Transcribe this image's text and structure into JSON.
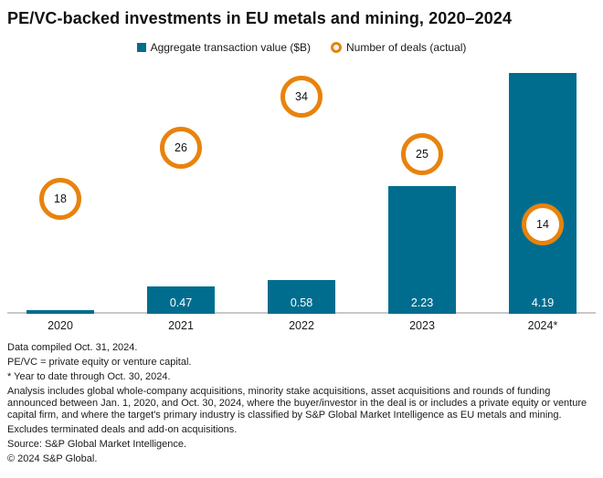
{
  "title": "PE/VC-backed investments in EU metals and mining, 2020–2024",
  "legend": [
    {
      "label": "Aggregate transaction value ($B)",
      "swatch": "square",
      "color": "#006d8f"
    },
    {
      "label": "Number of deals (actual)",
      "swatch": "ring",
      "color": "#e8830d"
    }
  ],
  "chart_data": {
    "type": "bar",
    "categories": [
      "2020",
      "2021",
      "2022",
      "2023",
      "2024*"
    ],
    "series": [
      {
        "name": "Aggregate transaction value ($B)",
        "type": "bar",
        "color": "#006d8f",
        "values": [
          0.06,
          0.47,
          0.58,
          2.23,
          4.19
        ],
        "labels": [
          "",
          "0.47",
          "0.58",
          "2.23",
          "4.19"
        ]
      },
      {
        "name": "Number of deals (actual)",
        "type": "point",
        "color": "#e8830d",
        "values": [
          18,
          26,
          34,
          25,
          14
        ]
      }
    ],
    "ylim_value": [
      0,
      4.4
    ],
    "ylim_deals": [
      0,
      39.6
    ],
    "grid": false,
    "legend_position": "top",
    "value_labels_inside_bars": true,
    "deal_labels_in_circles": true
  },
  "colors": {
    "bar": "#006d8f",
    "deal_ring": "#e8830d",
    "axis_line": "#c8c8c8",
    "text": "#1a1a1a",
    "bar_label_text": "#ffffff",
    "background": "#ffffff"
  },
  "footnotes": [
    "Data compiled Oct. 31, 2024.",
    "PE/VC = private equity or venture capital.",
    "* Year to date through Oct. 30, 2024.",
    "Analysis includes global whole-company acquisitions, minority stake acquisitions, asset acquisitions and rounds of funding announced between Jan. 1, 2020, and Oct. 30, 2024, where the buyer/investor in the deal is or includes a private equity or venture capital firm, and where the target's primary industry is classified by S&P Global Market Intelligence as EU metals and mining.",
    "Excludes terminated deals and add-on acquisitions.",
    "Source: S&P Global Market Intelligence.",
    "© 2024 S&P Global."
  ]
}
